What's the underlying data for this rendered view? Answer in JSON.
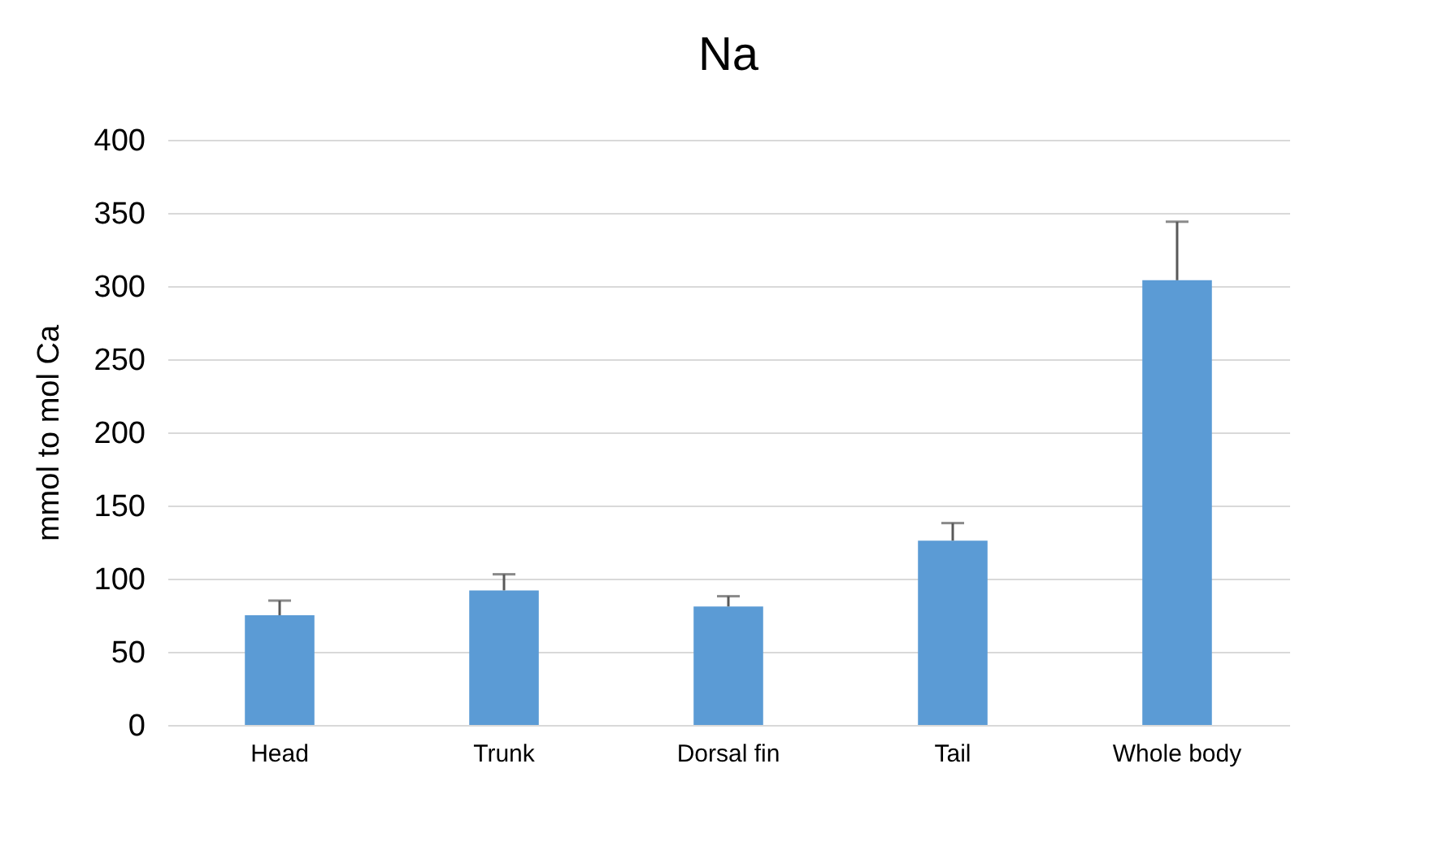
{
  "chart_data": {
    "type": "bar",
    "title": "Na",
    "ylabel": "mmol to mol Ca",
    "categories": [
      "Head",
      "Trunk",
      "Dorsal fin",
      "Tail",
      "Whole body"
    ],
    "values": [
      75,
      92,
      81,
      126,
      304
    ],
    "color": "#5b9bd5",
    "errors": [
      [
        75,
        85
      ],
      [
        92,
        103
      ],
      [
        81,
        88
      ],
      [
        126,
        138
      ],
      [
        304,
        344
      ]
    ],
    "ylim": [
      0,
      400
    ],
    "yticks": [
      0,
      50,
      100,
      150,
      200,
      250,
      300,
      350,
      400
    ],
    "grid": "y"
  }
}
